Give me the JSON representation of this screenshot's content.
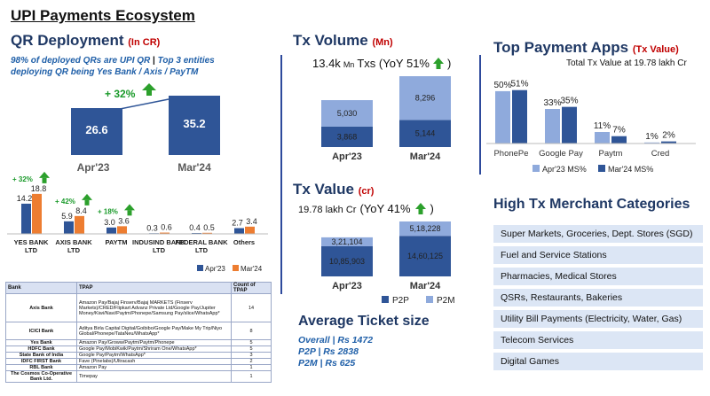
{
  "title": "UPI Payments Ecosystem",
  "qr": {
    "title": "QR Deployment",
    "unit": "(In CR)",
    "note_line1": "98% of deployed QRs are UPI QR",
    "note_line1b": "Top 3 entities",
    "note_line2": "deploying QR being Yes Bank / Axis / PayTM",
    "growth": "+ 32%",
    "bars": [
      {
        "label": "Apr'23",
        "value": "26.6"
      },
      {
        "label": "Mar'24",
        "value": "35.2"
      }
    ]
  },
  "entities": {
    "legend": [
      "Apr'23",
      "Mar'24"
    ],
    "items": [
      {
        "name": "YES BANK LTD",
        "apr": 14.2,
        "mar": 18.8,
        "apr_label": "14.2",
        "mar_label": "18.8",
        "growth": "+ 32%"
      },
      {
        "name": "AXIS BANK LTD",
        "apr": 5.9,
        "mar": 8.4,
        "apr_label": "5.9",
        "mar_label": "8.4",
        "growth": "+ 42%"
      },
      {
        "name": "PAYTM",
        "apr": 3.0,
        "mar": 3.6,
        "apr_label": "3.0",
        "mar_label": "3.6",
        "growth": "+ 18%"
      },
      {
        "name": "INDUSIND BANK LTD",
        "apr": 0.3,
        "mar": 0.6,
        "apr_label": "0.3",
        "mar_label": "0.6",
        "growth": ""
      },
      {
        "name": "FEDERAL BANK LTD",
        "apr": 0.4,
        "mar": 0.5,
        "apr_label": "0.4",
        "mar_label": "0.5",
        "growth": ""
      },
      {
        "name": "Others",
        "apr": 2.7,
        "mar": 3.4,
        "apr_label": "2.7",
        "mar_label": "3.4",
        "growth": ""
      }
    ]
  },
  "table": {
    "headers": [
      "Bank",
      "TPAP",
      "Count of TPAP"
    ],
    "rows": [
      [
        "Axis Bank",
        "Amazon Pay/Bajaj Finserv/Bajaj MARKETS (Finserv Markets)/CRED/Flipkart Advanz Private Ltd/Google Pay/Jupiter Money/Kiwi/Navi/Paytm/Phonepe/Samsung Pay/slice/WhatsApp*",
        "14"
      ],
      [
        "ICICI Bank",
        "Aditya Birla Capital Digital/Goibibo/Google Pay/Make My Trip/Niyo Global/Phonepe/TataNeu/WhatsApp*",
        "8"
      ],
      [
        "Yes Bank",
        "Amazon Pay/Groww/Paytm/Paytm/Phonepe",
        "5"
      ],
      [
        "HDFC Bank",
        "Google Pay/MobiKwik/Paytm/Shriram One/WhatsApp*",
        "5"
      ],
      [
        "State Bank of India",
        "Google Pay/Paytm/WhatsApp*",
        "3"
      ],
      [
        "IDFC FIRST Bank",
        "Fave (Pinelabs)/Ultracash",
        "2"
      ],
      [
        "RBL Bank",
        "Amazon Pay",
        "1"
      ],
      [
        "The Cosmos Co-Operative Bank Ltd.",
        "Timepay",
        "1"
      ]
    ]
  },
  "txvol": {
    "title": "Tx Volume",
    "unit": "(Mn)",
    "summary_value": "13.4k",
    "summary_unit": "Mn",
    "summary_rest": "Txs (YoY 51%",
    "bars": [
      {
        "label": "Apr'23",
        "p2p": 3868,
        "p2m": 5030,
        "p2p_label": "3,868",
        "p2m_label": "5,030"
      },
      {
        "label": "Mar'24",
        "p2p": 5144,
        "p2m": 8296,
        "p2p_label": "5,144",
        "p2m_label": "8,296"
      }
    ]
  },
  "txval": {
    "title": "Tx Value",
    "unit": "(cr)",
    "summary_value": "19.78 lakh Cr",
    "summary_rest": "(YoY 41%",
    "legend": [
      "P2P",
      "P2M"
    ],
    "bars": [
      {
        "label": "Apr'23",
        "p2p": 1085903,
        "p2m": 321104,
        "p2p_label": "10,85,903",
        "p2m_label": "3,21,104"
      },
      {
        "label": "Mar'24",
        "p2p": 1460125,
        "p2m": 518228,
        "p2p_label": "14,60,125",
        "p2m_label": "5,18,228"
      }
    ]
  },
  "ticket": {
    "title": "Average Ticket size",
    "lines": [
      "Overall | Rs 1472",
      "P2P | Rs 2838",
      "P2M | Rs 625"
    ]
  },
  "apps": {
    "title": "Top Payment Apps",
    "unit": "(Tx Value)",
    "subtitle": "Total Tx Value at 19.78 lakh Cr",
    "legend": [
      "Apr'23 MS%",
      "Mar'24 MS%"
    ],
    "items": [
      {
        "name": "PhonePe",
        "apr": 50,
        "mar": 51,
        "apr_label": "50%",
        "mar_label": "51%"
      },
      {
        "name": "Google Pay",
        "apr": 33,
        "mar": 35,
        "apr_label": "33%",
        "mar_label": "35%"
      },
      {
        "name": "Paytm",
        "apr": 11,
        "mar": 7,
        "apr_label": "11%",
        "mar_label": "7%"
      },
      {
        "name": "Cred",
        "apr": 1,
        "mar": 2,
        "apr_label": "1%",
        "mar_label": "2%"
      }
    ]
  },
  "merchant": {
    "title": "High Tx Merchant Categories",
    "items": [
      "Super Markets, Groceries, Dept. Stores (SGD)",
      "Fuel and Service Stations",
      "Pharmacies, Medical Stores",
      "QSRs, Restaurants, Bakeries",
      "Utility Bill Payments (Electricity, Water, Gas)",
      "Telecom Services",
      "Digital Games"
    ]
  },
  "colors": {
    "dark_blue": "#2f5597",
    "light_blue": "#8faadc",
    "orange": "#ed7d31",
    "green": "#2ca02c"
  },
  "chart_data": [
    {
      "type": "bar",
      "title": "QR Deployment",
      "categories": [
        "Apr'23",
        "Mar'24"
      ],
      "values": [
        26.6,
        35.2
      ],
      "ylabel": "(In CR)"
    },
    {
      "type": "bar",
      "categories": [
        "YES BANK LTD",
        "AXIS BANK LTD",
        "PAYTM",
        "INDUSIND BANK LTD",
        "FEDERAL BANK LTD",
        "Others"
      ],
      "series": [
        {
          "name": "Apr'23",
          "values": [
            14.2,
            5.9,
            3.0,
            0.3,
            0.4,
            2.7
          ]
        },
        {
          "name": "Mar'24",
          "values": [
            18.8,
            8.4,
            3.6,
            0.6,
            0.5,
            3.4
          ]
        }
      ]
    },
    {
      "type": "bar",
      "title": "Tx Volume",
      "categories": [
        "Apr'23",
        "Mar'24"
      ],
      "series": [
        {
          "values": [
            3868,
            5144
          ]
        },
        {
          "values": [
            5030,
            8296
          ]
        }
      ],
      "stacked": true
    },
    {
      "type": "bar",
      "title": "Tx Value",
      "categories": [
        "Apr'23",
        "Mar'24"
      ],
      "series": [
        {
          "name": "P2P",
          "values": [
            1085903,
            1460125
          ]
        },
        {
          "name": "P2M",
          "values": [
            321104,
            518228
          ]
        }
      ],
      "stacked": true
    },
    {
      "type": "bar",
      "title": "Top Payment Apps",
      "categories": [
        "PhonePe",
        "Google Pay",
        "Paytm",
        "Cred"
      ],
      "series": [
        {
          "name": "Apr'23 MS%",
          "values": [
            50,
            33,
            11,
            1
          ]
        },
        {
          "name": "Mar'24 MS%",
          "values": [
            51,
            35,
            7,
            2
          ]
        }
      ]
    }
  ]
}
